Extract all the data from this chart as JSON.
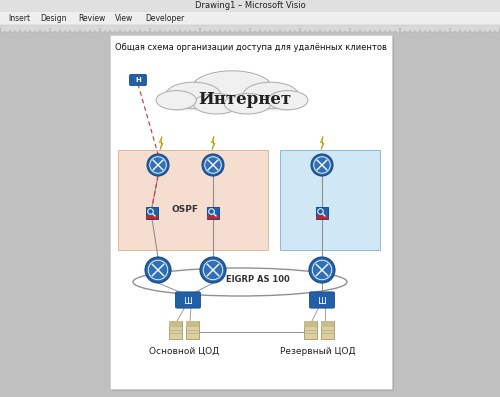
{
  "title_bar": "Drawing1 – Microsoft Visio",
  "menu_items": [
    "Insert",
    "Design",
    "Review",
    "View",
    "Developer"
  ],
  "diagram_title": "Общая схема организации доступа для удалённых клиентов",
  "cloud_text": "Интернет",
  "ospf_label": "OSPF",
  "eigrp_label": "EIGRP AS 100",
  "main_dc_label": "Основной ЦОД",
  "backup_dc_label": "Резервный ЦОД",
  "bg_color": "#c0c0c0",
  "page_bg": "#ffffff",
  "titlebar_bg": "#e0e0e0",
  "menu_bg": "#eeeeee",
  "ruler_bg": "#d8d8d8",
  "left_zone_color": "#f5ddd0",
  "right_zone_color": "#d0e8f5",
  "router_color": "#3070b0",
  "cloud_color": "#f0f0f0",
  "line_color": "#909090",
  "dashed_line_color": "#cc3333",
  "lightning_color": "#e8d010"
}
